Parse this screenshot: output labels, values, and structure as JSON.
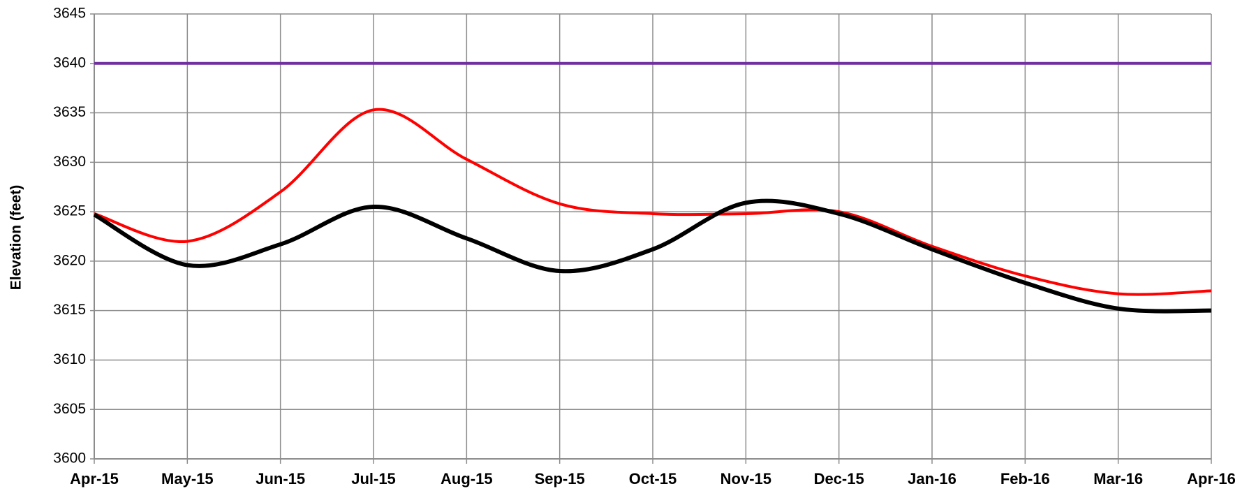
{
  "chart_data": {
    "type": "line",
    "y_label": "Elevation (feet)",
    "categories": [
      "Apr-15",
      "May-15",
      "Jun-15",
      "Jul-15",
      "Aug-15",
      "Sep-15",
      "Oct-15",
      "Nov-15",
      "Dec-15",
      "Jan-16",
      "Feb-16",
      "Mar-16",
      "Apr-16"
    ],
    "series": [
      {
        "color": "#7030a0",
        "values": [
          3640,
          3640,
          3640,
          3640,
          3640,
          3640,
          3640,
          3640,
          3640,
          3640,
          3640,
          3640,
          3640
        ]
      },
      {
        "color": "#ff0000",
        "values": [
          3624.8,
          3622,
          3627,
          3635.3,
          3630.3,
          3625.8,
          3624.8,
          3624.8,
          3625,
          3621.5,
          3618.5,
          3616.7,
          3617
        ]
      },
      {
        "color": "#000000",
        "values": [
          3624.7,
          3619.6,
          3621.7,
          3625.5,
          3622.3,
          3619,
          3621.2,
          3625.9,
          3624.8,
          3621.2,
          3617.8,
          3615.2,
          3615
        ]
      }
    ],
    "ylim": [
      3600,
      3645
    ],
    "yticks": [
      3600,
      3605,
      3610,
      3615,
      3620,
      3625,
      3630,
      3635,
      3640,
      3645
    ],
    "grid": true
  }
}
